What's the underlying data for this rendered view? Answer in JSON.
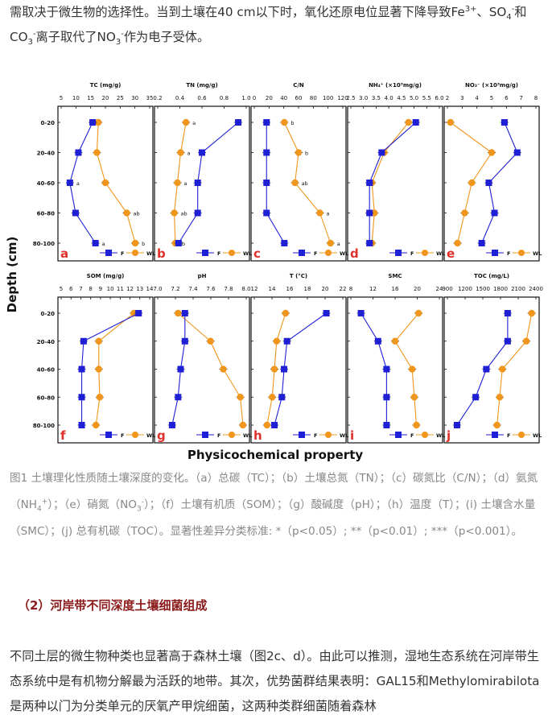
{
  "intro_paragraph": {
    "part1": "需取决于微生物的选择性。当到土壤在40 cm以下时，氧化还原电位显著下降导致Fe",
    "fe_charge": "3+",
    "part2": "、SO",
    "so_sub": "4",
    "so_charge": "-",
    "part3": "和 CO",
    "co_sub": "3",
    "co_charge": "-",
    "part4": "离子取代了NO",
    "no_sub": "3",
    "no_charge": "-",
    "part5": "作为电子受体。"
  },
  "figure": {
    "y_axis_title": "Depth (cm)",
    "x_axis_title": "Physicochemical property",
    "depth_labels": [
      "0-20",
      "20-40",
      "40-60",
      "60-80",
      "80-100"
    ],
    "legend": {
      "series_f": "F",
      "series_wl": "WL"
    },
    "colors": {
      "series_f": "#1f1fd6",
      "series_wl": "#f0961c"
    },
    "panels": [
      {
        "letter": "a",
        "title": "TC (mg/g)",
        "ticks": [
          "5",
          "10",
          "15",
          "20",
          "25",
          "30",
          "35"
        ],
        "xlim": [
          5,
          35
        ],
        "F": [
          15.5,
          10.5,
          7.5,
          9.5,
          16.5
        ],
        "WL": [
          17.5,
          17,
          20,
          27.5,
          30.5
        ],
        "sig_F": [
          "",
          "",
          "a",
          "",
          "a"
        ],
        "sig_WL": [
          "",
          "",
          "",
          "ab",
          "b"
        ]
      },
      {
        "letter": "b",
        "title": "TN (mg/g)",
        "ticks": [
          "0.2",
          "0.4",
          "0.6",
          "0.8",
          "1.0"
        ],
        "xlim": [
          0.2,
          1.0
        ],
        "F": [
          0.94,
          0.6,
          0.56,
          0.56,
          0.38
        ],
        "WL": [
          0.45,
          0.4,
          0.37,
          0.34,
          0.35
        ],
        "sig_F": [
          "",
          "",
          "",
          "",
          ""
        ],
        "sig_WL": [
          "a",
          "a",
          "a",
          "ab",
          "b"
        ]
      },
      {
        "letter": "c",
        "title": "C/N",
        "ticks": [
          "0",
          "20",
          "40",
          "60",
          "80",
          "100",
          "120"
        ],
        "xlim": [
          0,
          120
        ],
        "F": [
          15,
          15,
          15,
          15,
          40
        ],
        "WL": [
          40,
          60,
          55,
          90,
          105
        ],
        "sig_F": [
          "",
          "",
          "",
          "",
          ""
        ],
        "sig_WL": [
          "b",
          "b",
          "ab",
          "a",
          "a"
        ]
      },
      {
        "letter": "d",
        "title": "NH₄⁺ (×10³mg/g)",
        "ticks": [
          "2.5",
          "3.0",
          "3.5",
          "4.0",
          "4.5",
          "5.0",
          "5.5",
          "6.0"
        ],
        "xlim": [
          2.5,
          6.0
        ],
        "F": [
          5.1,
          3.7,
          3.2,
          3.2,
          3.2
        ],
        "WL": [
          4.8,
          3.8,
          3.3,
          3.4,
          3.3
        ],
        "sig_F": [
          "",
          "",
          "",
          "",
          ""
        ],
        "sig_WL": [
          "",
          "",
          "",
          "",
          ""
        ]
      },
      {
        "letter": "e",
        "title": "NO₃⁻ (×10³mg/g)",
        "ticks": [
          "2",
          "3",
          "4",
          "5",
          "6",
          "7",
          "8"
        ],
        "xlim": [
          2,
          8
        ],
        "F": [
          5.9,
          6.8,
          4.8,
          5.2,
          4.3
        ],
        "WL": [
          2.1,
          5,
          3.6,
          3.1,
          2.6
        ],
        "sig_F": [
          "",
          "",
          "",
          "",
          ""
        ],
        "sig_WL": [
          "",
          "",
          "",
          "",
          ""
        ]
      },
      {
        "letter": "f",
        "title": "SOM (mg/g)",
        "ticks": [
          "5",
          "6",
          "7",
          "8",
          "9",
          "10",
          "11",
          "12",
          "13",
          "14"
        ],
        "xlim": [
          5,
          14
        ],
        "F": [
          13,
          7.2,
          7,
          7,
          7
        ],
        "WL": [
          12.5,
          8.8,
          8.8,
          8.9,
          8.5
        ],
        "sig_F": [
          "",
          "",
          "",
          "",
          ""
        ],
        "sig_WL": [
          "",
          "",
          "",
          "",
          ""
        ]
      },
      {
        "letter": "g",
        "title": "pH",
        "ticks": [
          "7.0",
          "7.2",
          "7.4",
          "7.6",
          "7.8",
          "8.0"
        ],
        "xlim": [
          7.0,
          8.0
        ],
        "F": [
          7.3,
          7.3,
          7.25,
          7.22,
          7.15
        ],
        "WL": [
          7.22,
          7.6,
          7.75,
          7.95,
          7.98
        ],
        "sig_F": [
          "",
          "",
          "",
          "",
          ""
        ],
        "sig_WL": [
          "",
          "",
          "",
          "",
          ""
        ]
      },
      {
        "letter": "h",
        "title": "T (°C)",
        "ticks": [
          "12",
          "14",
          "16",
          "18",
          "20",
          "22"
        ],
        "xlim": [
          11,
          22.5
        ],
        "F": [
          20.5,
          15.2,
          14.8,
          14.5,
          13.5
        ],
        "WL": [
          15,
          13.8,
          13.5,
          13.2,
          12.5
        ],
        "sig_F": [
          "",
          "",
          "",
          "",
          ""
        ],
        "sig_WL": [
          "",
          "",
          "",
          "",
          ""
        ]
      },
      {
        "letter": "i",
        "title": "SMC",
        "ticks": [
          "8",
          "12",
          "16",
          "20",
          "24"
        ],
        "xlim": [
          7,
          27
        ],
        "F": [
          9,
          13,
          15,
          15,
          15
        ],
        "WL": [
          22.5,
          17,
          21,
          21.5,
          22
        ],
        "sig_F": [
          "",
          "",
          "",
          "",
          ""
        ],
        "sig_WL": [
          "",
          "",
          "",
          "",
          ""
        ]
      },
      {
        "letter": "j",
        "title": "TOC (mg/L)",
        "ticks": [
          "900",
          "1200",
          "1500",
          "1800",
          "2100",
          "2400"
        ],
        "xlim": [
          900,
          2500
        ],
        "F": [
          2000,
          2000,
          1600,
          1400,
          1050
        ],
        "WL": [
          2450,
          2350,
          1900,
          1850,
          1800
        ],
        "sig_F": [
          "",
          "",
          "",
          "",
          ""
        ],
        "sig_WL": [
          "",
          "",
          "",
          "",
          ""
        ]
      }
    ]
  },
  "caption": {
    "p1": "图1 土壤理化性质随土壤深度的变化。（a）总碳（TC）；（b）土壤总氮（TN）；（c）碳氮比（C/N）；（d）氨氮（NH",
    "nh_sub": "4",
    "nh_sup": "+",
    "p2": "）；（e）硝氮（NO",
    "no_sub": "3",
    "no_sup": "-",
    "p3": "）；（f）土壤有机质（SOM）；（g）酸碱度（pH）；（h）温度（T）；(i) 土壤含水量（SMC）；(j) 总有机碳（TOC）。显著性差异分类标准: *（p<0.05）; **（p<0.01）; ***（p<0.001）。"
  },
  "section_heading": "（2）河岸带不同深度土壤细菌组成",
  "bottom_paragraph": "不同土层的微生物种类也显著高于森林土壤（图2c、d）。由此可以推测，湿地生态系统在河岸带生态系统中是有机物分解最为活跃的地带。其次，优势菌群结果表明：GAL15和Methylomirabilota是两种以门为分类单元的厌氧产甲烷细菌，这两种类群细菌随着森林"
}
